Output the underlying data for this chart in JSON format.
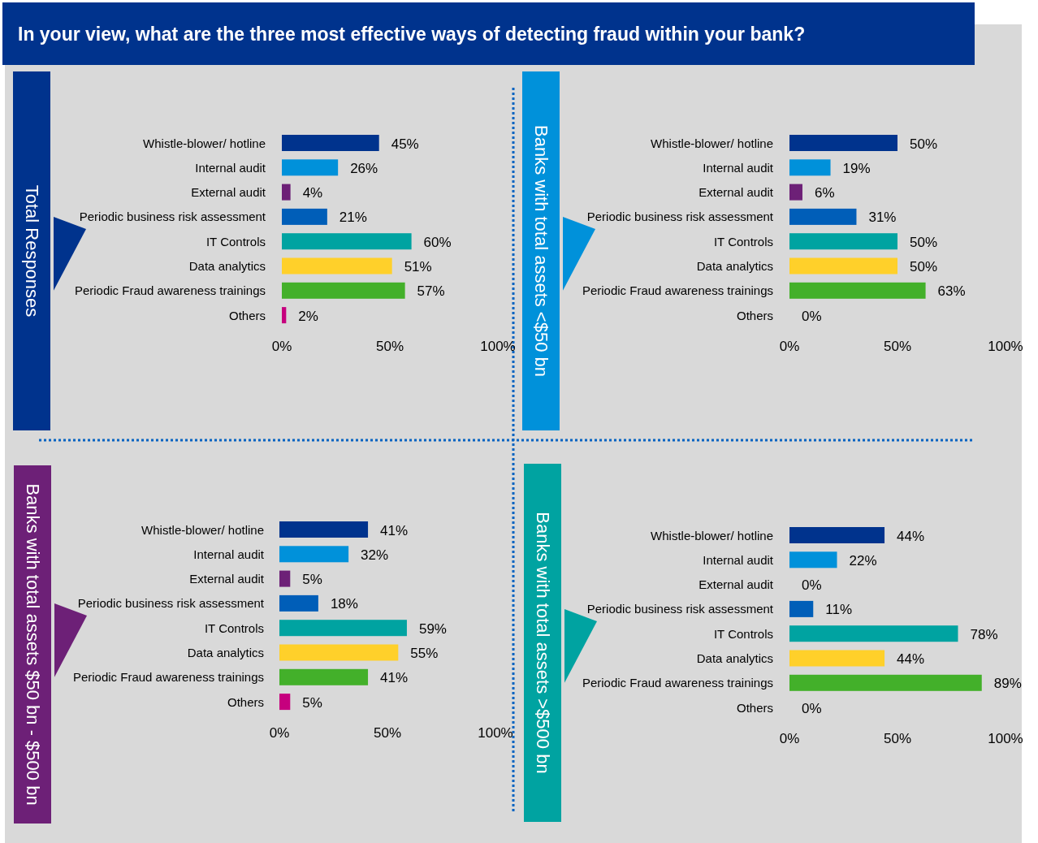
{
  "chart_data": [
    {
      "type": "bar",
      "orientation": "horizontal",
      "title": "In your view, what are the three most effective ways of detecting fraud within your bank?",
      "ylabel": "Total Responses",
      "categories": [
        "Whistle-blower/ hotline",
        "Internal audit",
        "External audit",
        "Periodic business risk assessment",
        "IT Controls",
        "Data analytics",
        "Periodic Fraud awareness trainings",
        "Others"
      ],
      "values": [
        45,
        26,
        4,
        21,
        60,
        51,
        57,
        2
      ],
      "value_labels": [
        "45%",
        "26%",
        "4%",
        "21%",
        "60%",
        "51%",
        "57%",
        "2%"
      ],
      "colors": [
        "#00338d",
        "#0091da",
        "#6d2077",
        "#005eb8",
        "#00a3a1",
        "#ffd02a",
        "#43b02a",
        "#c6007e"
      ],
      "xlim": [
        0,
        100
      ],
      "xticks": [
        {
          "value": 0,
          "label": "0%"
        },
        {
          "value": 50,
          "label": "50%"
        },
        {
          "value": 100,
          "label": "100%"
        }
      ]
    },
    {
      "type": "bar",
      "orientation": "horizontal",
      "ylabel": "Banks with total assets <$50 bn",
      "categories": [
        "Whistle-blower/ hotline",
        "Internal audit",
        "External audit",
        "Periodic business risk assessment",
        "IT Controls",
        "Data analytics",
        "Periodic Fraud awareness trainings",
        "Others"
      ],
      "values": [
        50,
        19,
        6,
        31,
        50,
        50,
        63,
        0
      ],
      "value_labels": [
        "50%",
        "19%",
        "6%",
        "31%",
        "50%",
        "50%",
        "63%",
        "0%"
      ],
      "colors": [
        "#00338d",
        "#0091da",
        "#6d2077",
        "#005eb8",
        "#00a3a1",
        "#ffd02a",
        "#43b02a",
        "#c6007e"
      ],
      "xlim": [
        0,
        100
      ],
      "xticks": [
        {
          "value": 0,
          "label": "0%"
        },
        {
          "value": 50,
          "label": "50%"
        },
        {
          "value": 100,
          "label": "100%"
        }
      ]
    },
    {
      "type": "bar",
      "orientation": "horizontal",
      "ylabel": "Banks with total assets $50 bn - $500 bn",
      "categories": [
        "Whistle-blower/ hotline",
        "Internal audit",
        "External audit",
        "Periodic business risk assessment",
        "IT Controls",
        "Data analytics",
        "Periodic Fraud awareness trainings",
        "Others"
      ],
      "values": [
        41,
        32,
        5,
        18,
        59,
        55,
        41,
        5
      ],
      "value_labels": [
        "41%",
        "32%",
        "5%",
        "18%",
        "59%",
        "55%",
        "41%",
        "5%"
      ],
      "colors": [
        "#00338d",
        "#0091da",
        "#6d2077",
        "#005eb8",
        "#00a3a1",
        "#ffd02a",
        "#43b02a",
        "#c6007e"
      ],
      "xlim": [
        0,
        100
      ],
      "xticks": [
        {
          "value": 0,
          "label": "0%"
        },
        {
          "value": 50,
          "label": "50%"
        },
        {
          "value": 100,
          "label": "100%"
        }
      ]
    },
    {
      "type": "bar",
      "orientation": "horizontal",
      "ylabel": "Banks with total assets >$500 bn",
      "categories": [
        "Whistle-blower/ hotline",
        "Internal audit",
        "External audit",
        "Periodic business risk assessment",
        "IT Controls",
        "Data analytics",
        "Periodic Fraud awareness trainings",
        "Others"
      ],
      "values": [
        44,
        22,
        0,
        11,
        78,
        44,
        89,
        0
      ],
      "value_labels": [
        "44%",
        "22%",
        "0%",
        "11%",
        "78%",
        "44%",
        "89%",
        "0%"
      ],
      "colors": [
        "#00338d",
        "#0091da",
        "#6d2077",
        "#005eb8",
        "#00a3a1",
        "#ffd02a",
        "#43b02a",
        "#c6007e"
      ],
      "xlim": [
        0,
        100
      ],
      "xticks": [
        {
          "value": 0,
          "label": "0%"
        },
        {
          "value": 50,
          "label": "50%"
        },
        {
          "value": 100,
          "label": "100%"
        }
      ]
    }
  ]
}
